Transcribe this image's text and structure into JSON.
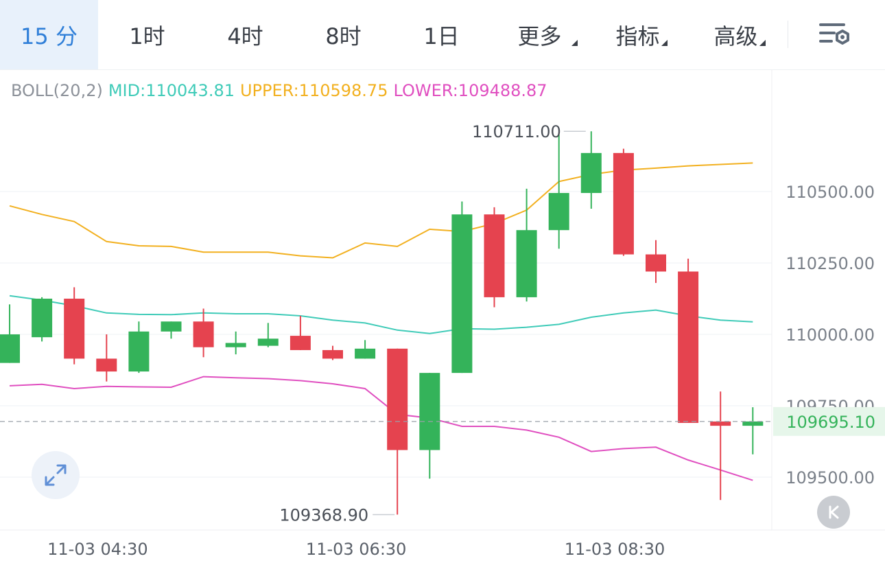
{
  "tabs": {
    "items": [
      {
        "label": "15 分",
        "active": true
      },
      {
        "label": "1时"
      },
      {
        "label": "4时"
      },
      {
        "label": "8时"
      },
      {
        "label": "1日"
      },
      {
        "label": "更多",
        "dropdown": true
      },
      {
        "label": "指标",
        "dropdown": true
      },
      {
        "label": "高级",
        "dropdown": true
      }
    ],
    "settings_icon": "chart-settings-icon"
  },
  "legend": {
    "name": "BOLL(20,2)",
    "mid": "MID:110043.81",
    "upper": "UPPER:110598.75",
    "lower": "LOWER:109488.87"
  },
  "colors": {
    "up": "#34b35a",
    "down": "#e5434f",
    "mid": "#3fcbb8",
    "upper": "#f2b01f",
    "lower": "#e04fc0",
    "active_tab": "#2f7fd8",
    "last_price": "#34b35a"
  },
  "controls": {
    "expand_icon": "expand-arrows-icon",
    "k_icon": "k-line-icon"
  },
  "chart_data": {
    "type": "candlestick",
    "y_axis_ticks": [
      "110500.00",
      "110250.00",
      "110000.00",
      "109750.00",
      "109500.00"
    ],
    "x_axis_ticks": [
      "11-03 04:30",
      "11-03 06:30",
      "11-03 08:30"
    ],
    "max_label": "110711.00",
    "min_label": "109368.90",
    "last_price": "109695.10",
    "candles": [
      {
        "o": 109900,
        "h": 110105,
        "l": 109900,
        "c": 110000
      },
      {
        "o": 109990,
        "h": 110130,
        "l": 109975,
        "c": 110125
      },
      {
        "o": 110125,
        "h": 110165,
        "l": 109895,
        "c": 109915
      },
      {
        "o": 109915,
        "h": 110000,
        "l": 109835,
        "c": 109870
      },
      {
        "o": 109870,
        "h": 110045,
        "l": 109865,
        "c": 110010
      },
      {
        "o": 110010,
        "h": 110045,
        "l": 109985,
        "c": 110045
      },
      {
        "o": 110045,
        "h": 110090,
        "l": 109920,
        "c": 109955
      },
      {
        "o": 109955,
        "h": 110010,
        "l": 109930,
        "c": 109970
      },
      {
        "o": 109960,
        "h": 110040,
        "l": 109955,
        "c": 109985
      },
      {
        "o": 109995,
        "h": 110065,
        "l": 109945,
        "c": 109945
      },
      {
        "o": 109945,
        "h": 109960,
        "l": 109910,
        "c": 109915
      },
      {
        "o": 109915,
        "h": 109980,
        "l": 109915,
        "c": 109950
      },
      {
        "o": 109950,
        "h": 109950,
        "l": 109368.9,
        "c": 109595
      },
      {
        "o": 109595,
        "h": 109865,
        "l": 109495,
        "c": 109865
      },
      {
        "o": 109865,
        "h": 110465,
        "l": 109865,
        "c": 110420
      },
      {
        "o": 110420,
        "h": 110445,
        "l": 110095,
        "c": 110130
      },
      {
        "o": 110130,
        "h": 110510,
        "l": 110115,
        "c": 110365
      },
      {
        "o": 110365,
        "h": 110700,
        "l": 110300,
        "c": 110495
      },
      {
        "o": 110495,
        "h": 110711,
        "l": 110440,
        "c": 110635
      },
      {
        "o": 110635,
        "h": 110650,
        "l": 110275,
        "c": 110280
      },
      {
        "o": 110280,
        "h": 110330,
        "l": 110180,
        "c": 110220
      },
      {
        "o": 110220,
        "h": 110265,
        "l": 109690,
        "c": 109690
      },
      {
        "o": 109695,
        "h": 109800,
        "l": 109420,
        "c": 109680
      },
      {
        "o": 109680,
        "h": 109745,
        "l": 109580,
        "c": 109695.1
      }
    ],
    "series": [
      {
        "name": "UPPER",
        "values": [
          110450,
          110420,
          110395,
          110325,
          110310,
          110308,
          110288,
          110288,
          110288,
          110275,
          110268,
          110320,
          110308,
          110368,
          110360,
          110388,
          110435,
          110535,
          110560,
          110575,
          110582,
          110590,
          110595,
          110600
        ]
      },
      {
        "name": "MID",
        "values": [
          110135,
          110120,
          110100,
          110075,
          110070,
          110069,
          110075,
          110072,
          110072,
          110065,
          110050,
          110040,
          110015,
          110003,
          110020,
          110018,
          110025,
          110035,
          110060,
          110075,
          110085,
          110065,
          110050,
          110043.81
        ]
      },
      {
        "name": "LOWER",
        "values": [
          109820,
          109825,
          109810,
          109818,
          109816,
          109815,
          109852,
          109848,
          109845,
          109838,
          109827,
          109810,
          109720,
          109707,
          109678,
          109678,
          109665,
          109640,
          109590,
          109600,
          109605,
          109560,
          109525,
          109488.87
        ]
      }
    ]
  }
}
